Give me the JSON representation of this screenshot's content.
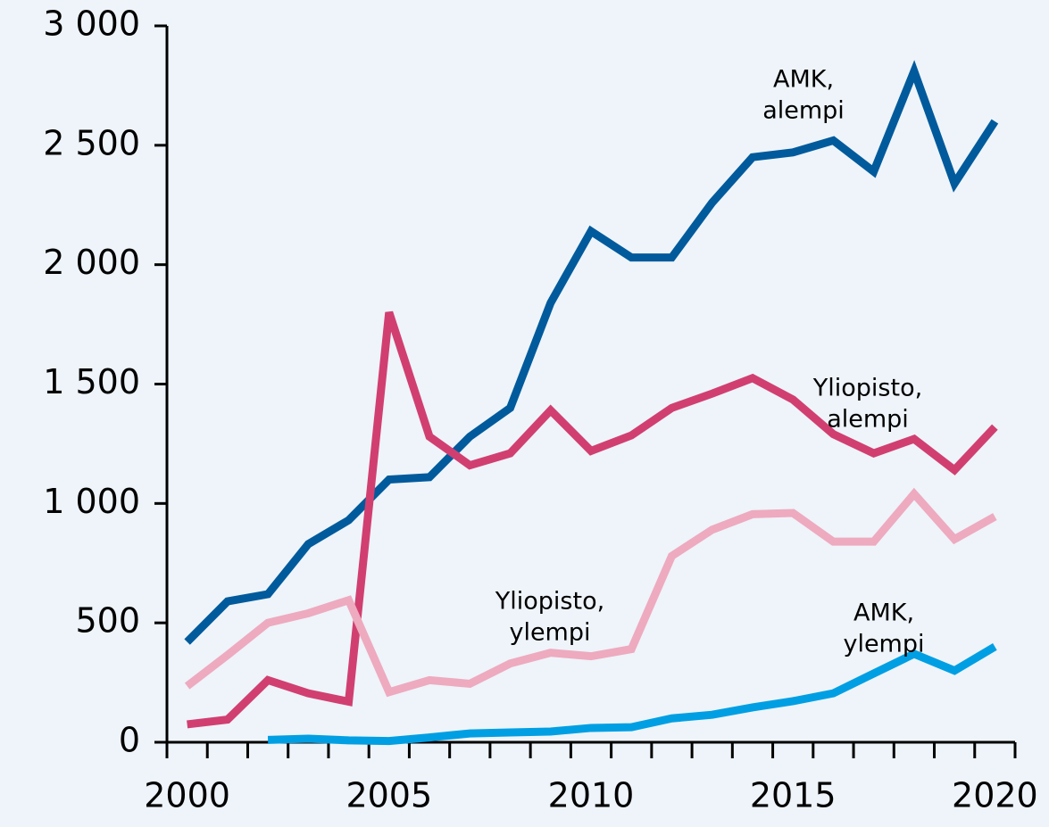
{
  "chart_data": {
    "type": "line",
    "x": [
      2000,
      2001,
      2002,
      2003,
      2004,
      2005,
      2006,
      2007,
      2008,
      2009,
      2010,
      2011,
      2012,
      2013,
      2014,
      2015,
      2016,
      2017,
      2018,
      2019,
      2020
    ],
    "xlim": [
      1999.5,
      2020.5
    ],
    "xticks": [
      2000,
      2005,
      2010,
      2015,
      2020
    ],
    "ylim": [
      0,
      3000
    ],
    "yticks": [
      0,
      500,
      {
        "value": 1000,
        "label": "1 000"
      },
      {
        "value": 1500,
        "label": "1 500"
      },
      {
        "value": 2000,
        "label": "2 000"
      },
      {
        "value": 2500,
        "label": "2 500"
      },
      {
        "value": 3000,
        "label": "3 000"
      }
    ],
    "grid": false,
    "series": [
      {
        "name": [
          "AMK,",
          "alempi"
        ],
        "color": "#005a9c",
        "values": [
          420,
          590,
          620,
          830,
          930,
          1100,
          1110,
          1280,
          1400,
          1840,
          2140,
          2030,
          2030,
          2260,
          2450,
          2470,
          2520,
          2390,
          2810,
          2340,
          2600
        ]
      },
      {
        "name": [
          "Yliopisto,",
          "alempi"
        ],
        "color": "#d13f70",
        "values": [
          75,
          95,
          260,
          205,
          170,
          1800,
          1280,
          1160,
          1210,
          1390,
          1220,
          1285,
          1400,
          1460,
          1525,
          1435,
          1290,
          1210,
          1270,
          1140,
          1320
        ]
      },
      {
        "name": [
          "Yliopisto,",
          "ylempi"
        ],
        "color": "#eeaabf",
        "values": [
          235,
          365,
          500,
          540,
          595,
          210,
          260,
          245,
          330,
          375,
          360,
          390,
          780,
          890,
          955,
          960,
          840,
          840,
          1040,
          850,
          945
        ]
      },
      {
        "name": [
          "AMK,",
          "ylempi"
        ],
        "color": "#009fe3",
        "values": [
          null,
          null,
          10,
          15,
          8,
          5,
          20,
          37,
          41,
          45,
          60,
          63,
          100,
          115,
          146,
          172,
          205,
          288,
          370,
          300,
          400
        ]
      }
    ]
  }
}
